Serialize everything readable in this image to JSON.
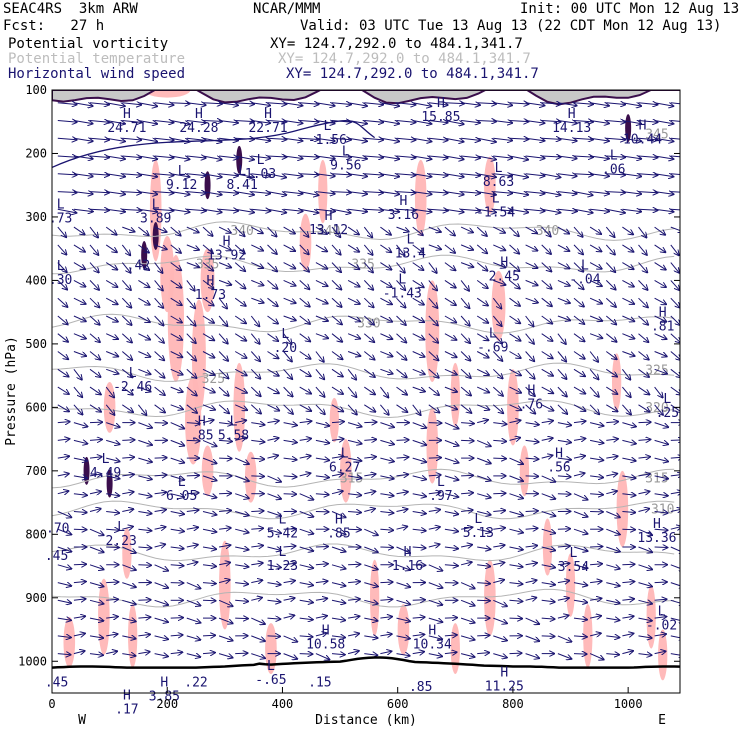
{
  "header": {
    "model": "SEAC4RS  3km ARW",
    "org": "NCAR/MMM",
    "init": "Init: 00 UTC Mon 12 Aug 13",
    "fcst": "Fcst:   27 h",
    "valid": "Valid: 03 UTC Tue 13 Aug 13 (22 CDT Mon 12 Aug 13)",
    "fields": [
      {
        "name": "Potential vorticity",
        "xy": "XY= 124.7,292.0 to 484.1,341.7",
        "color": "#000000"
      },
      {
        "name": "Potential temperature",
        "xy": "XY= 124.7,292.0 to 484.1,341.7",
        "color": "#b4b4b4"
      },
      {
        "name": "Horizontal wind speed",
        "xy": "XY= 124.7,292.0 to 484.1,341.7",
        "color": "#1a1470"
      }
    ]
  },
  "chart_data": {
    "type": "cross-section",
    "xlabel": "Distance (km)",
    "ylabel": "Pressure (hPa)",
    "x_ticks": [
      0,
      200,
      400,
      600,
      800,
      1000
    ],
    "y_ticks": [
      100,
      200,
      300,
      400,
      500,
      600,
      700,
      800,
      900,
      1000
    ],
    "xlim": [
      0,
      1090
    ],
    "ylim": [
      100,
      1050
    ],
    "y_direction": "pressure increasing downward",
    "end_labels": {
      "left": "W",
      "right": "E"
    },
    "colors": {
      "vector": "#1a1470",
      "theta": "#b4b4b4",
      "pv_fill": "#ffb6b6",
      "pv_contour": "#3a0e4c"
    },
    "theta_contours": [
      {
        "label": "345",
        "x": 1050,
        "p": 170
      },
      {
        "label": "340",
        "x": 330,
        "p": 322
      },
      {
        "label": "340",
        "x": 480,
        "p": 322
      },
      {
        "label": "340",
        "x": 860,
        "p": 322
      },
      {
        "label": "335",
        "x": 270,
        "p": 375
      },
      {
        "label": "335",
        "x": 540,
        "p": 375
      },
      {
        "label": "330",
        "x": 550,
        "p": 468
      },
      {
        "label": "325",
        "x": 280,
        "p": 555
      },
      {
        "label": "325",
        "x": 1050,
        "p": 542
      },
      {
        "label": "320",
        "x": 1050,
        "p": 601
      },
      {
        "label": "315",
        "x": 520,
        "p": 712
      },
      {
        "label": "315",
        "x": 1050,
        "p": 712
      },
      {
        "label": "310",
        "x": 1060,
        "p": 761
      }
    ],
    "extrema": [
      {
        "t": "H",
        "v": "24.71",
        "x": 130,
        "p": 147
      },
      {
        "t": "H",
        "v": "24.28",
        "x": 255,
        "p": 147
      },
      {
        "t": "H",
        "v": "22.71",
        "x": 375,
        "p": 147
      },
      {
        "t": "L",
        "v": "-1.56",
        "x": 478,
        "p": 166
      },
      {
        "t": "L",
        "v": "9.56",
        "x": 510,
        "p": 206
      },
      {
        "t": "H",
        "v": "15.85",
        "x": 675,
        "p": 130
      },
      {
        "t": "H",
        "v": "14.13",
        "x": 902,
        "p": 147
      },
      {
        "t": "H",
        "v": "10.44",
        "x": 1025,
        "p": 165
      },
      {
        "t": "L",
        "v": ".06",
        "x": 975,
        "p": 213
      },
      {
        "t": "L",
        "v": "9.12",
        "x": 225,
        "p": 237
      },
      {
        "t": "L",
        "v": "8.41",
        "x": 330,
        "p": 237
      },
      {
        "t": "L",
        "v": "1.03",
        "x": 362,
        "p": 220
      },
      {
        "t": "H",
        "v": "3.16",
        "x": 610,
        "p": 284
      },
      {
        "t": "L",
        "v": "8.63",
        "x": 775,
        "p": 232
      },
      {
        "t": "L",
        "v": "-1.54",
        "x": 770,
        "p": 280
      },
      {
        "t": "H",
        "v": "13.12",
        "x": 480,
        "p": 308
      },
      {
        "t": "H",
        "v": "13.92",
        "x": 303,
        "p": 348
      },
      {
        "t": "L",
        "v": "13.4",
        "x": 622,
        "p": 345
      },
      {
        "t": "L",
        "v": "3.89",
        "x": 180,
        "p": 290
      },
      {
        "t": "L",
        "v": ".73",
        "x": 15,
        "p": 290
      },
      {
        "t": ".42",
        "v": "",
        "x": 150,
        "p": 386
      },
      {
        "t": "L",
        "v": ".30",
        "x": 15,
        "p": 387
      },
      {
        "t": "H",
        "v": "2.45",
        "x": 785,
        "p": 381
      },
      {
        "t": "L",
        "v": "-.04",
        "x": 925,
        "p": 386
      },
      {
        "t": "L",
        "v": "-1.43",
        "x": 608,
        "p": 408
      },
      {
        "t": "H",
        "v": "1.73",
        "x": 275,
        "p": 410
      },
      {
        "t": "H",
        "v": ".81",
        "x": 1060,
        "p": 460
      },
      {
        "t": "L",
        "v": ".20",
        "x": 405,
        "p": 494
      },
      {
        "t": "L",
        "v": "-.69",
        "x": 765,
        "p": 493
      },
      {
        "t": "L",
        "v": "-2.46",
        "x": 140,
        "p": 555
      },
      {
        "t": "H",
        "v": ".76",
        "x": 832,
        "p": 583
      },
      {
        "t": "L",
        "v": ".25",
        "x": 1068,
        "p": 596
      },
      {
        "t": "H",
        "v": ".85",
        "x": 260,
        "p": 632
      },
      {
        "t": "L",
        "v": "5.58",
        "x": 315,
        "p": 632
      },
      {
        "t": "L",
        "v": "6.27",
        "x": 508,
        "p": 682
      },
      {
        "t": "H",
        "v": ".56",
        "x": 880,
        "p": 682
      },
      {
        "t": "L",
        "v": "4.49",
        "x": 93,
        "p": 691
      },
      {
        "t": "L",
        "v": "6.05",
        "x": 225,
        "p": 727
      },
      {
        "t": "L",
        "v": ".97",
        "x": 675,
        "p": 727
      },
      {
        "t": "L",
        "v": "5.13",
        "x": 740,
        "p": 785
      },
      {
        "t": "L",
        "v": "5.42",
        "x": 400,
        "p": 786
      },
      {
        "t": "H",
        "v": ".85",
        "x": 498,
        "p": 786
      },
      {
        "t": "H",
        "v": "13.36",
        "x": 1050,
        "p": 793
      },
      {
        "t": "L",
        "v": "2.23",
        "x": 120,
        "p": 798
      },
      {
        "t": ".70",
        "v": "",
        "x": 10,
        "p": 800
      },
      {
        "t": "L",
        "v": "1.23",
        "x": 400,
        "p": 837
      },
      {
        "t": "H",
        "v": "1.16",
        "x": 617,
        "p": 837
      },
      {
        "t": "L",
        "v": "3.54",
        "x": 905,
        "p": 839
      },
      {
        "t": ".45",
        "v": "",
        "x": 8,
        "p": 844
      },
      {
        "t": "L",
        "v": "-.02",
        "x": 1058,
        "p": 931
      },
      {
        "t": "H",
        "v": "10.58",
        "x": 475,
        "p": 961
      },
      {
        "t": "H",
        "v": "10.34",
        "x": 660,
        "p": 961
      },
      {
        "t": "L",
        "v": "-.65",
        "x": 380,
        "p": 1017
      },
      {
        "t": "H",
        "v": "11.25",
        "x": 785,
        "p": 1027
      },
      {
        "t": "H",
        "v": "3.85",
        "x": 195,
        "p": 1043
      },
      {
        "t": "H",
        "v": ".17",
        "x": 130,
        "p": 1063
      },
      {
        "t": ".22",
        "v": "",
        "x": 250,
        "p": 1043
      },
      {
        "t": ".15",
        "v": "",
        "x": 465,
        "p": 1043
      },
      {
        "t": ".85",
        "v": "",
        "x": 640,
        "p": 1050
      },
      {
        "t": ".45",
        "v": "",
        "x": 8,
        "p": 1043
      }
    ]
  }
}
